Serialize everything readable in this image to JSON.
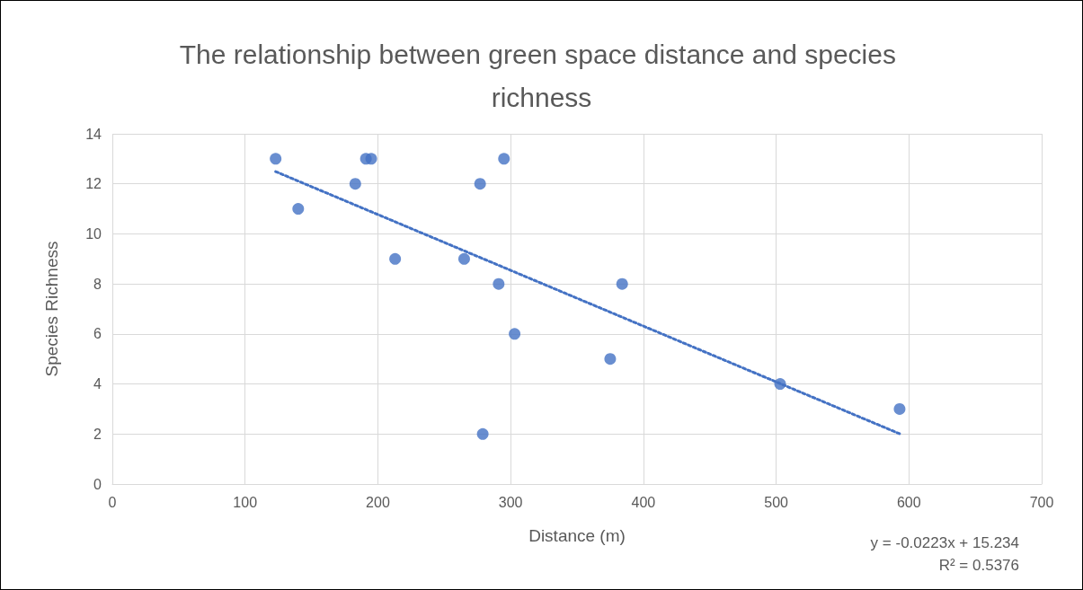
{
  "chart_data": {
    "type": "scatter",
    "title": "The relationship between green space distance and species richness",
    "xlabel": "Distance (m)",
    "ylabel": "Species Richness",
    "series": [
      {
        "color": "#4472c4",
        "marker": "circle",
        "x": [
          123,
          140,
          183,
          191,
          195,
          213,
          265,
          277,
          279,
          291,
          295,
          303,
          375,
          384,
          503,
          593
        ],
        "values": [
          13,
          11,
          12,
          13,
          13,
          9,
          9,
          12,
          2,
          8,
          13,
          6,
          5,
          8,
          4,
          3
        ]
      },
      {
        "type": "line",
        "color": "#4472c4",
        "marker": "none",
        "line_style": "dotted",
        "x": [
          123,
          593
        ],
        "values": [
          12.49,
          2.01
        ]
      }
    ],
    "xlim": [
      0,
      700
    ],
    "xticks": [
      0,
      100,
      200,
      300,
      400,
      500,
      600,
      700
    ],
    "ylim": [
      0,
      14
    ],
    "yticks": [
      0,
      2,
      4,
      6,
      8,
      10,
      12,
      14
    ],
    "grid": true,
    "annotations": [
      "y = -0.0223x + 15.234",
      "R² = 0.5376"
    ]
  }
}
